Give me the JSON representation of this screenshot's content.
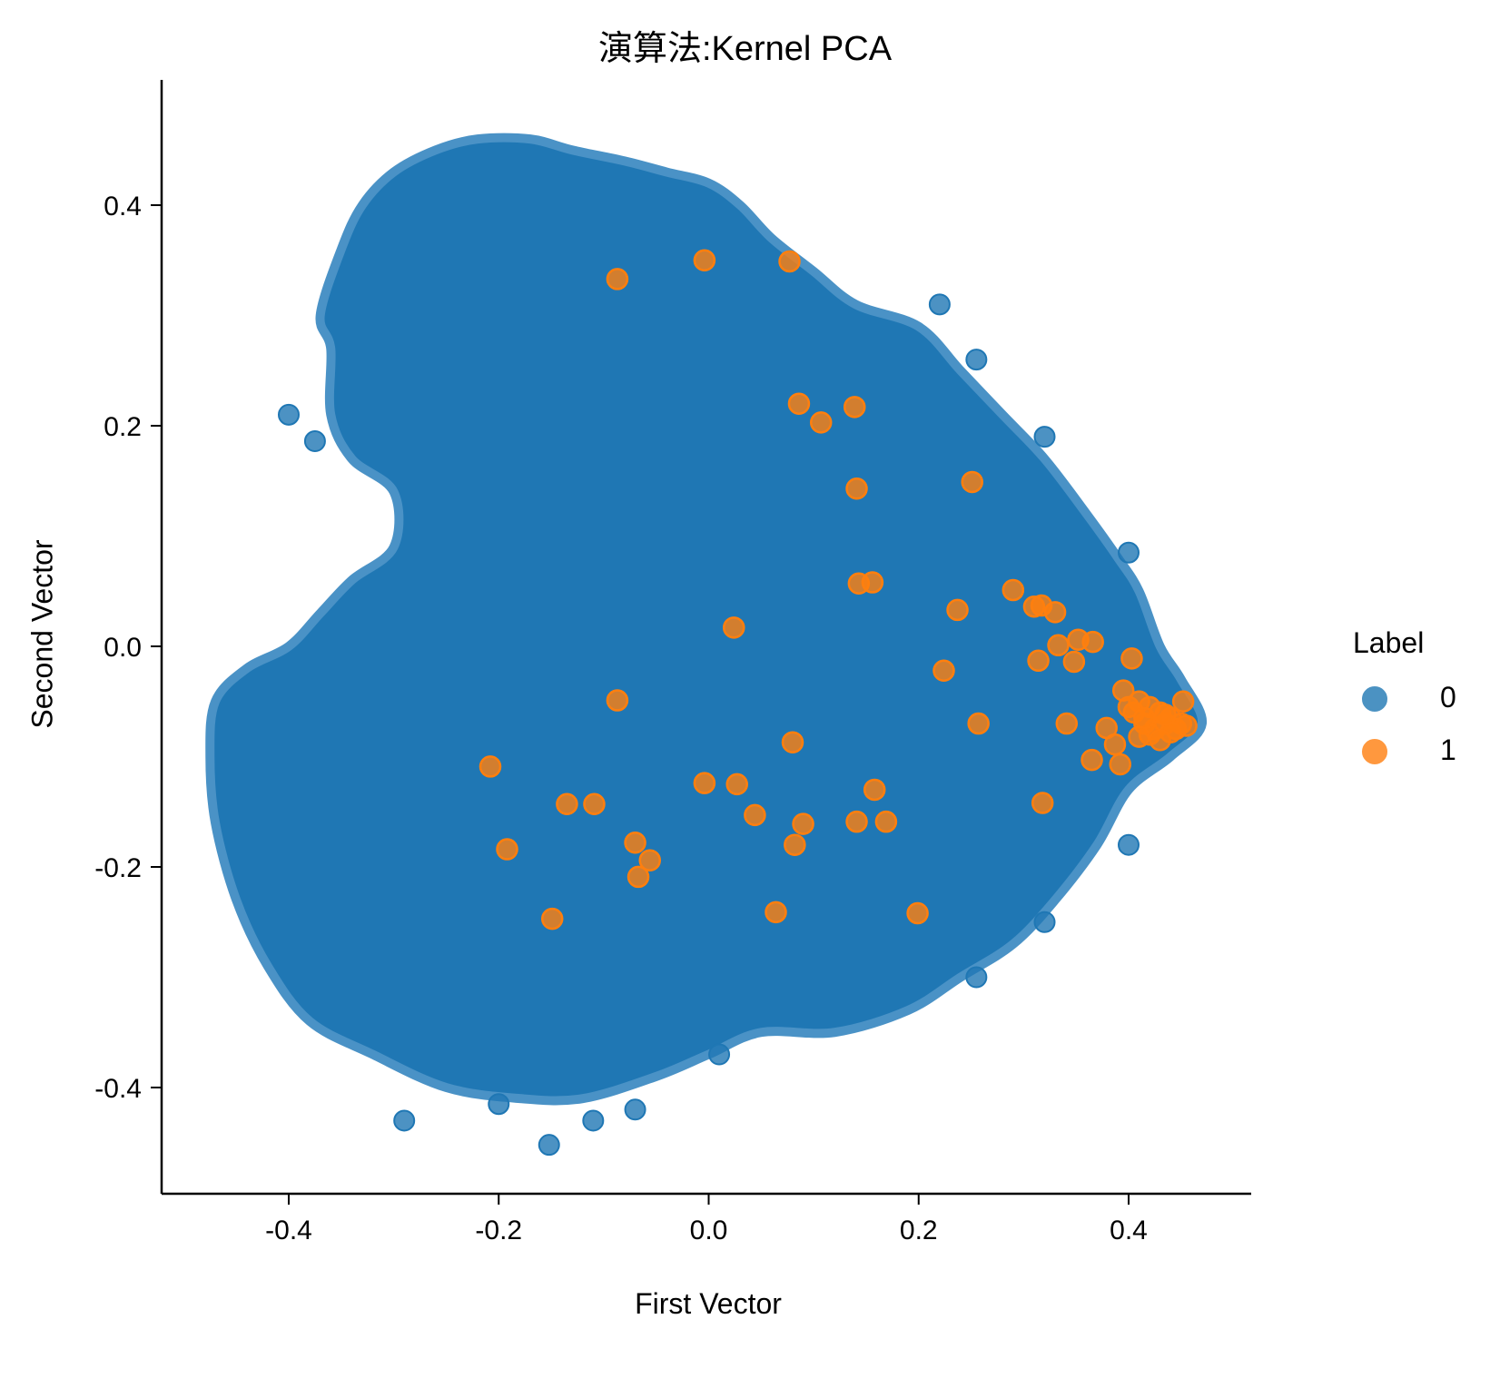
{
  "chart_data": {
    "type": "scatter",
    "title": "演算法:Kernel PCA",
    "xlabel": "First Vector",
    "ylabel": "Second Vector",
    "xlim": [
      -0.52,
      0.52
    ],
    "ylim": [
      -0.5,
      0.51
    ],
    "xticks": [
      -0.4,
      -0.2,
      0.0,
      0.2,
      0.4
    ],
    "xtick_labels": [
      "-0.4",
      "-0.2",
      "0.0",
      "0.2",
      "0.4"
    ],
    "yticks": [
      -0.4,
      -0.2,
      0.0,
      0.2,
      0.4
    ],
    "ytick_labels": [
      "-0.4",
      "-0.2",
      "0.0",
      "0.2",
      "0.4"
    ],
    "grid": false,
    "legend": {
      "title": "Label",
      "position": "right",
      "entries": [
        "0",
        "1"
      ]
    },
    "series": [
      {
        "name": "0",
        "color": "#1f77b4",
        "description": "dense cloud of many points; outline approximated",
        "outline": [
          [
            -0.47,
            -0.05
          ],
          [
            -0.44,
            -0.02
          ],
          [
            -0.4,
            0.0
          ],
          [
            -0.37,
            0.03
          ],
          [
            -0.34,
            0.06
          ],
          [
            -0.3,
            0.09
          ],
          [
            -0.3,
            0.14
          ],
          [
            -0.34,
            0.17
          ],
          [
            -0.36,
            0.21
          ],
          [
            -0.36,
            0.27
          ],
          [
            -0.37,
            0.3
          ],
          [
            -0.35,
            0.36
          ],
          [
            -0.33,
            0.4
          ],
          [
            -0.3,
            0.43
          ],
          [
            -0.26,
            0.45
          ],
          [
            -0.22,
            0.46
          ],
          [
            -0.17,
            0.46
          ],
          [
            -0.13,
            0.45
          ],
          [
            -0.08,
            0.44
          ],
          [
            -0.04,
            0.43
          ],
          [
            0.0,
            0.42
          ],
          [
            0.03,
            0.4
          ],
          [
            0.06,
            0.37
          ],
          [
            0.1,
            0.34
          ],
          [
            0.14,
            0.31
          ],
          [
            0.2,
            0.29
          ],
          [
            0.24,
            0.25
          ],
          [
            0.28,
            0.21
          ],
          [
            0.32,
            0.17
          ],
          [
            0.36,
            0.12
          ],
          [
            0.39,
            0.08
          ],
          [
            0.41,
            0.05
          ],
          [
            0.43,
            0.0
          ],
          [
            0.45,
            -0.03
          ],
          [
            0.47,
            -0.07
          ],
          [
            0.44,
            -0.1
          ],
          [
            0.4,
            -0.13
          ],
          [
            0.37,
            -0.18
          ],
          [
            0.33,
            -0.23
          ],
          [
            0.29,
            -0.27
          ],
          [
            0.24,
            -0.3
          ],
          [
            0.19,
            -0.33
          ],
          [
            0.12,
            -0.35
          ],
          [
            0.05,
            -0.35
          ],
          [
            0.0,
            -0.37
          ],
          [
            -0.05,
            -0.39
          ],
          [
            -0.12,
            -0.41
          ],
          [
            -0.18,
            -0.41
          ],
          [
            -0.25,
            -0.4
          ],
          [
            -0.32,
            -0.37
          ],
          [
            -0.38,
            -0.34
          ],
          [
            -0.42,
            -0.29
          ],
          [
            -0.45,
            -0.23
          ],
          [
            -0.47,
            -0.16
          ],
          [
            -0.475,
            -0.1
          ]
        ],
        "outliers": [
          [
            -0.4,
            0.21
          ],
          [
            -0.375,
            0.186
          ],
          [
            -0.29,
            -0.43
          ],
          [
            -0.152,
            -0.452
          ],
          [
            -0.11,
            -0.43
          ],
          [
            0.22,
            0.31
          ],
          [
            0.255,
            0.26
          ],
          [
            0.32,
            0.19
          ],
          [
            0.4,
            0.085
          ],
          [
            0.4,
            -0.18
          ],
          [
            0.32,
            -0.25
          ],
          [
            0.255,
            -0.3
          ],
          [
            -0.2,
            -0.415
          ],
          [
            -0.07,
            -0.42
          ],
          [
            0.01,
            -0.37
          ]
        ]
      },
      {
        "name": "1",
        "color": "#ff7f0e",
        "x": [
          -0.087,
          -0.004,
          0.077,
          0.086,
          0.107,
          0.139,
          0.141,
          0.251,
          0.143,
          0.156,
          0.024,
          0.29,
          0.237,
          0.31,
          0.317,
          0.33,
          0.352,
          0.366,
          0.333,
          0.314,
          0.348,
          0.403,
          0.224,
          0.257,
          0.341,
          0.379,
          0.387,
          0.365,
          0.392,
          0.318,
          -0.087,
          -0.208,
          -0.135,
          -0.109,
          -0.192,
          -0.07,
          -0.056,
          -0.067,
          -0.149,
          -0.004,
          0.027,
          0.044,
          0.08,
          0.158,
          0.09,
          0.141,
          0.169,
          0.082,
          0.064,
          0.199,
          0.395,
          0.41,
          0.42,
          0.43,
          0.44,
          0.45,
          0.405,
          0.415,
          0.425,
          0.435,
          0.445,
          0.455,
          0.4,
          0.42,
          0.44,
          0.43,
          0.415,
          0.452,
          0.435,
          0.41
        ],
        "y": [
          0.333,
          0.35,
          0.349,
          0.22,
          0.203,
          0.217,
          0.143,
          0.149,
          0.057,
          0.058,
          0.017,
          0.051,
          0.033,
          0.036,
          0.037,
          0.031,
          0.006,
          0.004,
          0.001,
          -0.013,
          -0.014,
          -0.011,
          -0.022,
          -0.07,
          -0.07,
          -0.074,
          -0.089,
          -0.103,
          -0.107,
          -0.142,
          -0.049,
          -0.109,
          -0.143,
          -0.143,
          -0.184,
          -0.178,
          -0.194,
          -0.209,
          -0.247,
          -0.124,
          -0.125,
          -0.153,
          -0.087,
          -0.13,
          -0.161,
          -0.159,
          -0.159,
          -0.18,
          -0.241,
          -0.242,
          -0.04,
          -0.05,
          -0.055,
          -0.06,
          -0.065,
          -0.07,
          -0.06,
          -0.07,
          -0.075,
          -0.07,
          -0.075,
          -0.072,
          -0.055,
          -0.08,
          -0.078,
          -0.085,
          -0.065,
          -0.05,
          -0.062,
          -0.082
        ]
      }
    ]
  }
}
